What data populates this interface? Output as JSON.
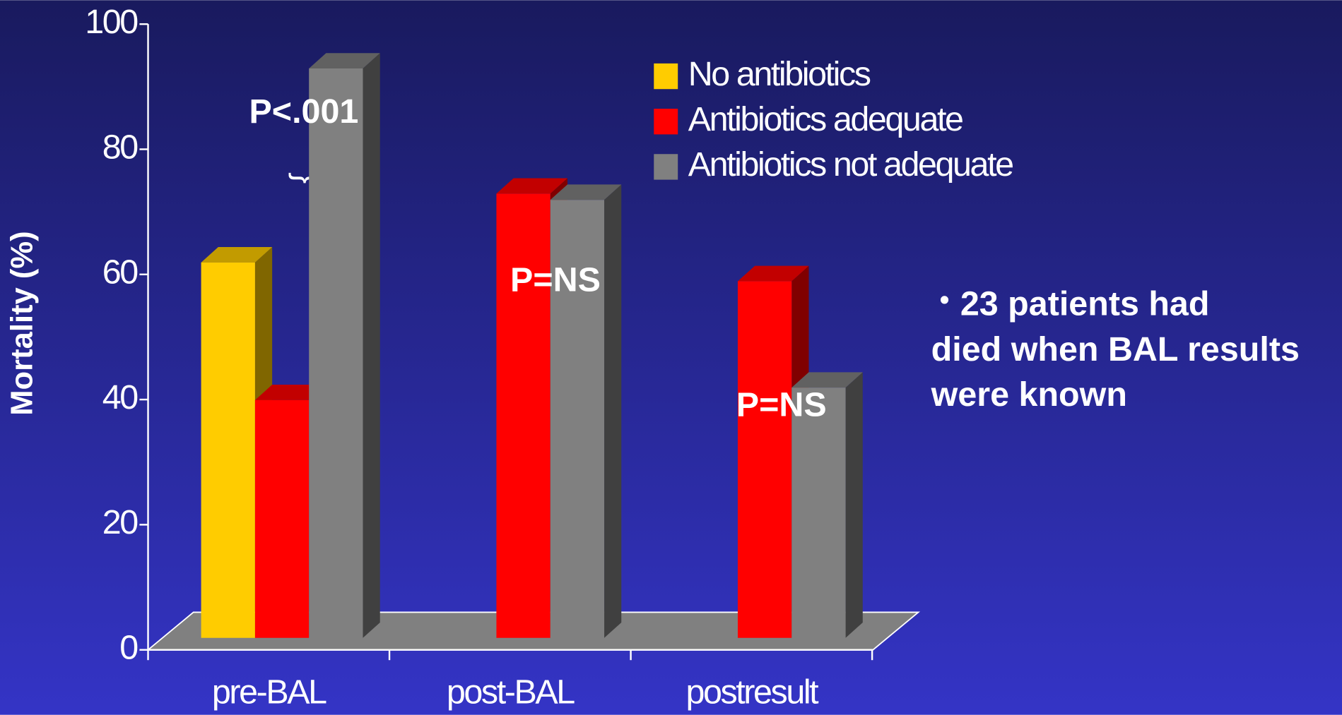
{
  "chart_data": {
    "type": "bar3d",
    "y_label": "Mortality (%)",
    "categories": [
      "pre-BAL",
      "post-BAL",
      "postresult"
    ],
    "series": [
      {
        "name": "No antibiotics",
        "color": "#ffcc00",
        "values": [
          60,
          null,
          null
        ]
      },
      {
        "name": "Antibiotics adequate",
        "color": "#ff0000",
        "values": [
          38,
          71,
          57
        ]
      },
      {
        "name": "Antibiotics not adequate",
        "color": "#808080",
        "values": [
          91,
          70,
          40
        ]
      }
    ],
    "ylim": [
      0,
      100
    ],
    "yticks": [
      0,
      20,
      40,
      60,
      80,
      100
    ],
    "annotations": [
      "P<.001",
      "P=NS",
      "P=NS"
    ],
    "note": [
      "23 patients had",
      "died when BAL results",
      "were known"
    ]
  }
}
